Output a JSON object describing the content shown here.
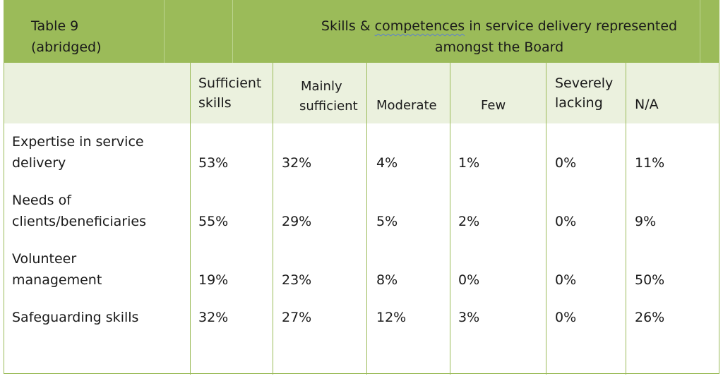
{
  "table": {
    "label_line1": "Table 9",
    "label_line2": "(abridged)",
    "caption_prefix": "Skills & ",
    "caption_squiggle": "competences",
    "caption_suffix": " in service delivery represented",
    "caption_line2": "amongst the Board",
    "columns": [
      {
        "line1": "Sufficient",
        "line2": "skills"
      },
      {
        "line1": "Mainly",
        "line2": "sufficient"
      },
      {
        "line1": "",
        "line2": "Moderate"
      },
      {
        "line1": "",
        "line2": "Few"
      },
      {
        "line1": "Severely",
        "line2": "lacking"
      },
      {
        "line1": "",
        "line2": "N/A"
      }
    ],
    "rows": [
      {
        "label_line1": "Expertise in service",
        "label_line2": "delivery",
        "values": [
          "53%",
          "32%",
          "4%",
          "1%",
          "0%",
          "11%"
        ]
      },
      {
        "label_line1": "Needs of",
        "label_line2": "clients/beneficiaries",
        "values": [
          "55%",
          "29%",
          "5%",
          "2%",
          "0%",
          "9%"
        ]
      },
      {
        "label_line1": "Volunteer",
        "label_line2": "management",
        "values": [
          "19%",
          "23%",
          "8%",
          "0%",
          "0%",
          "50%"
        ]
      },
      {
        "label_line1": "",
        "label_line2": "Safeguarding skills",
        "values": [
          "32%",
          "27%",
          "12%",
          "3%",
          "0%",
          "26%"
        ]
      }
    ]
  }
}
